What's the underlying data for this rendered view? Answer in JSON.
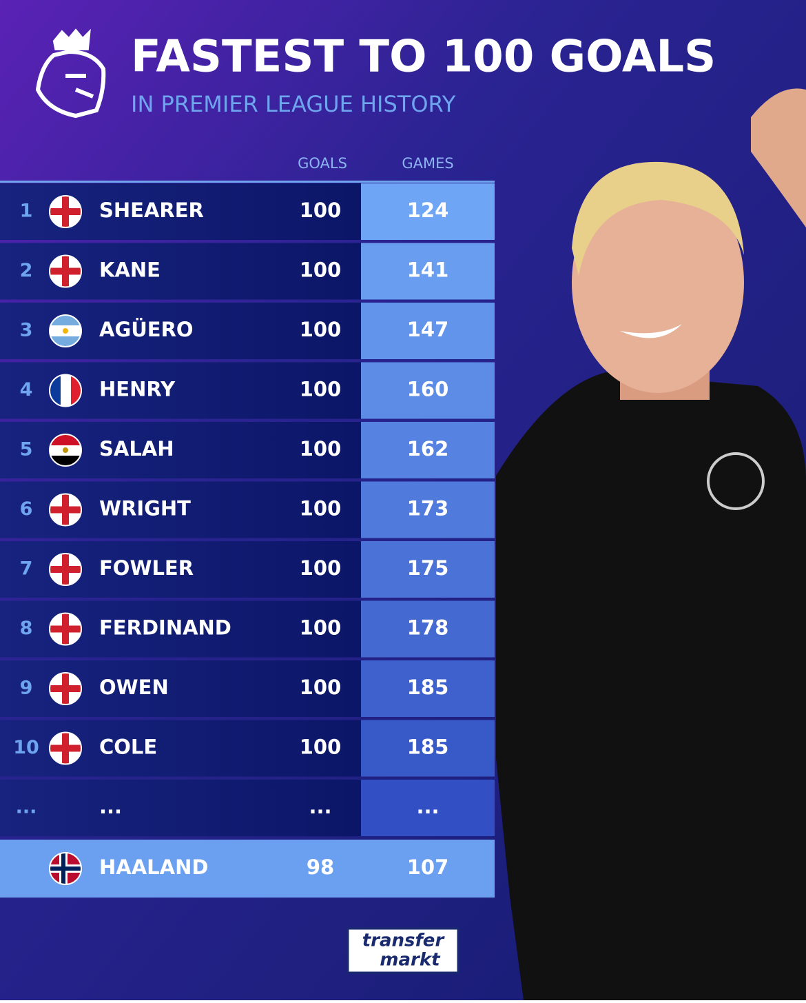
{
  "header": {
    "title": "FASTEST TO 100 GOALS",
    "subtitle": "IN PREMIER LEAGUE HISTORY"
  },
  "table": {
    "columns": [
      "GOALS",
      "GAMES"
    ],
    "rows": [
      {
        "rank": 1,
        "player": "SHEARER",
        "goals": 100,
        "games": 124
      },
      {
        "rank": 2,
        "player": "KANE",
        "goals": 100,
        "games": 141
      },
      {
        "rank": 3,
        "player": "AGÜERO",
        "goals": 100,
        "games": 147
      },
      {
        "rank": 4,
        "player": "HENRY",
        "goals": 100,
        "games": 160
      },
      {
        "rank": 5,
        "player": "SALAH",
        "goals": 100,
        "games": 162
      },
      {
        "rank": 6,
        "player": "WRIGHT",
        "goals": 100,
        "games": 173
      },
      {
        "rank": 7,
        "player": "FOWLER",
        "goals": 100,
        "games": 175
      },
      {
        "rank": 8,
        "player": "FERDINAND",
        "goals": 100,
        "games": 178
      },
      {
        "rank": 9,
        "player": "OWEN",
        "goals": 100,
        "games": 185
      },
      {
        "rank": 10,
        "player": "COLE",
        "goals": 100,
        "games": 185
      },
      {
        "rank": "...",
        "player": "...",
        "goals": "...",
        "games": "..."
      },
      {
        "player": "HAALAND",
        "goals": 98,
        "games": 107
      }
    ]
  },
  "footer": {
    "logo_top": "transfer",
    "logo_bottom": "markt"
  }
}
